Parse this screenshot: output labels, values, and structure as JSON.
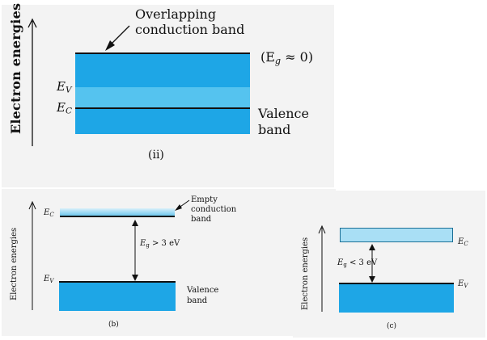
{
  "panel_ii": {
    "axis_label": "Electron energies",
    "callout": "Overlapping\nconduction band",
    "eg_label": "(E",
    "eg_sub": "g",
    "eg_value": " ≈ 0)",
    "ev_label": "E",
    "ev_sub": "V",
    "ec_label": "E",
    "ec_sub": "C",
    "valence_label": "Valence\nband",
    "caption": "(ii)"
  },
  "panel_b": {
    "axis_label": "Electron energies",
    "ec_label": "E",
    "ec_sub": "C",
    "ev_label": "E",
    "ev_sub": "V",
    "empty_label": "Empty\nconduction\nband",
    "gap_label_E": "E",
    "gap_label_sub": "g",
    "gap_label_rest": " > 3 eV",
    "valence_label": "Valence\nband",
    "caption": "(b)"
  },
  "panel_c": {
    "axis_label": "Electron energies",
    "ec_label": "E",
    "ec_sub": "C",
    "ev_label": "E",
    "ev_sub": "V",
    "gap_label_E": "E",
    "gap_label_sub": "g",
    "gap_label_rest": " < 3 eV",
    "caption": "(c)"
  },
  "colors": {
    "band_dark": "#1ea6e6",
    "band_light": "#55c3ef",
    "conduction_light": "#a9dff5",
    "panel_bg": "#f3f3f3"
  }
}
